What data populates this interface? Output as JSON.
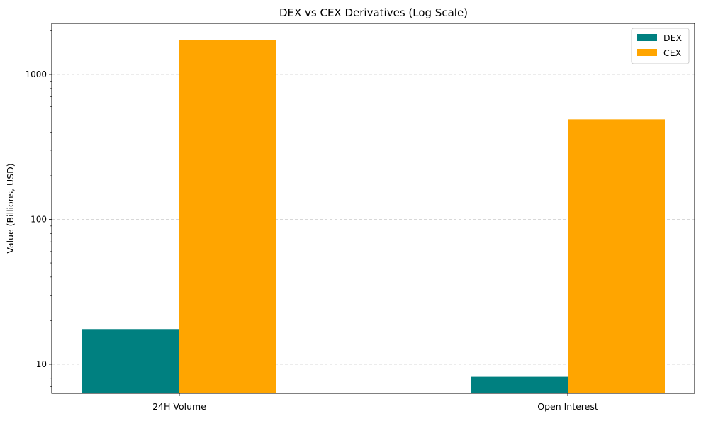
{
  "chart_data": {
    "type": "bar",
    "title": "DEX vs CEX Derivatives (Log Scale)",
    "xlabel": "",
    "ylabel": "Value (Billions, USD)",
    "yscale": "log",
    "ylim": [
      6.3,
      2250
    ],
    "yticks": [
      {
        "value": 10,
        "label": "10"
      },
      {
        "value": 100,
        "label": "100"
      },
      {
        "value": 1000,
        "label": "1000"
      }
    ],
    "categories": [
      "24H Volume",
      "Open Interest"
    ],
    "series": [
      {
        "name": "DEX",
        "color": "#008080",
        "values": [
          17.5,
          8.2
        ]
      },
      {
        "name": "CEX",
        "color": "#ffa500",
        "values": [
          1720,
          490
        ]
      }
    ],
    "grid": "y-major-dashed",
    "legend_position": "top-right"
  }
}
